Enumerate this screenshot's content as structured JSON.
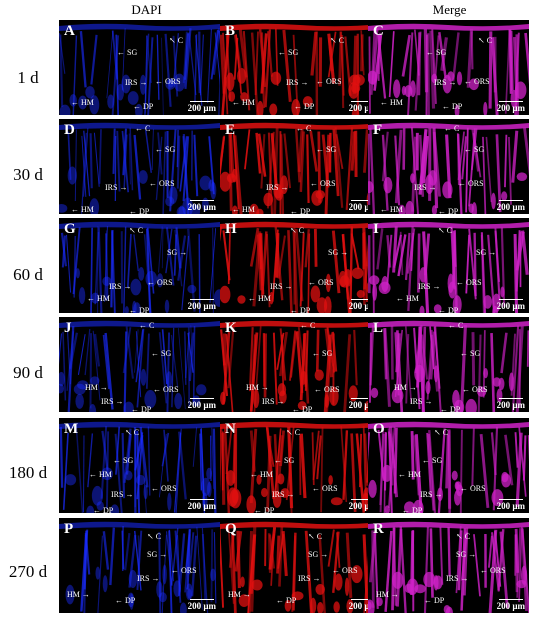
{
  "column_headers": [
    "DAPI",
    "",
    "Merge"
  ],
  "row_labels": [
    "1 d",
    "30 d",
    "60 d",
    "90 d",
    "180 d",
    "270 d"
  ],
  "panel_letters": [
    "A",
    "B",
    "C",
    "D",
    "E",
    "F",
    "G",
    "H",
    "I",
    "J",
    "K",
    "L",
    "M",
    "N",
    "O",
    "P",
    "Q",
    "R"
  ],
  "scale_bar_label": "200 µm",
  "structure_labels": {
    "c": "C",
    "sg": "SG",
    "irs": "IRS",
    "ors": "ORS",
    "hm": "HM",
    "dp": "DP"
  },
  "channel_colors": {
    "dapi": "#1a2cff",
    "red": "#e01010",
    "merge": "#d022c8"
  }
}
